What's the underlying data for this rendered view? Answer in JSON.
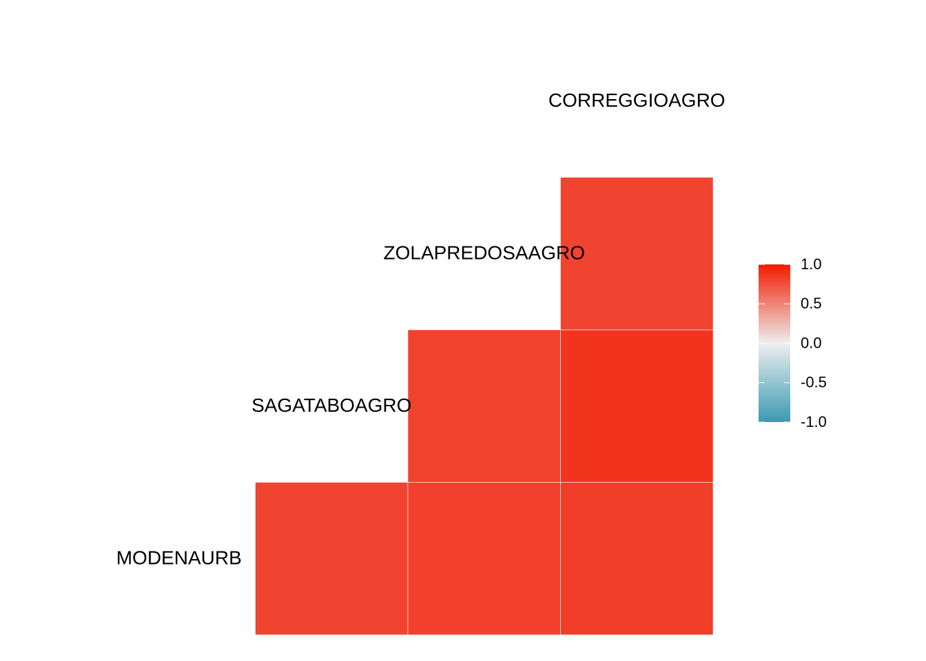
{
  "chart_data": {
    "type": "heatmap",
    "variables": [
      "MODENAURB",
      "SAGATABOAGRO",
      "ZOLAPREDOSAAGRO",
      "CORREGGIOAGRO"
    ],
    "values": [
      [
        null,
        0.8,
        0.82,
        0.83
      ],
      [
        null,
        null,
        0.81,
        0.88
      ],
      [
        null,
        null,
        null,
        0.8
      ],
      [
        null,
        null,
        null,
        null
      ]
    ],
    "colors": [
      "#3A9AB2",
      "#EEEEEE",
      "#F21A00"
    ],
    "clim": [
      -1,
      1
    ],
    "cticks": [
      {
        "value": 1,
        "label": "1.0"
      },
      0.5,
      {
        "value": 0,
        "label": "0.0"
      },
      -0.5,
      {
        "value": -1,
        "label": "-1.0"
      }
    ]
  }
}
